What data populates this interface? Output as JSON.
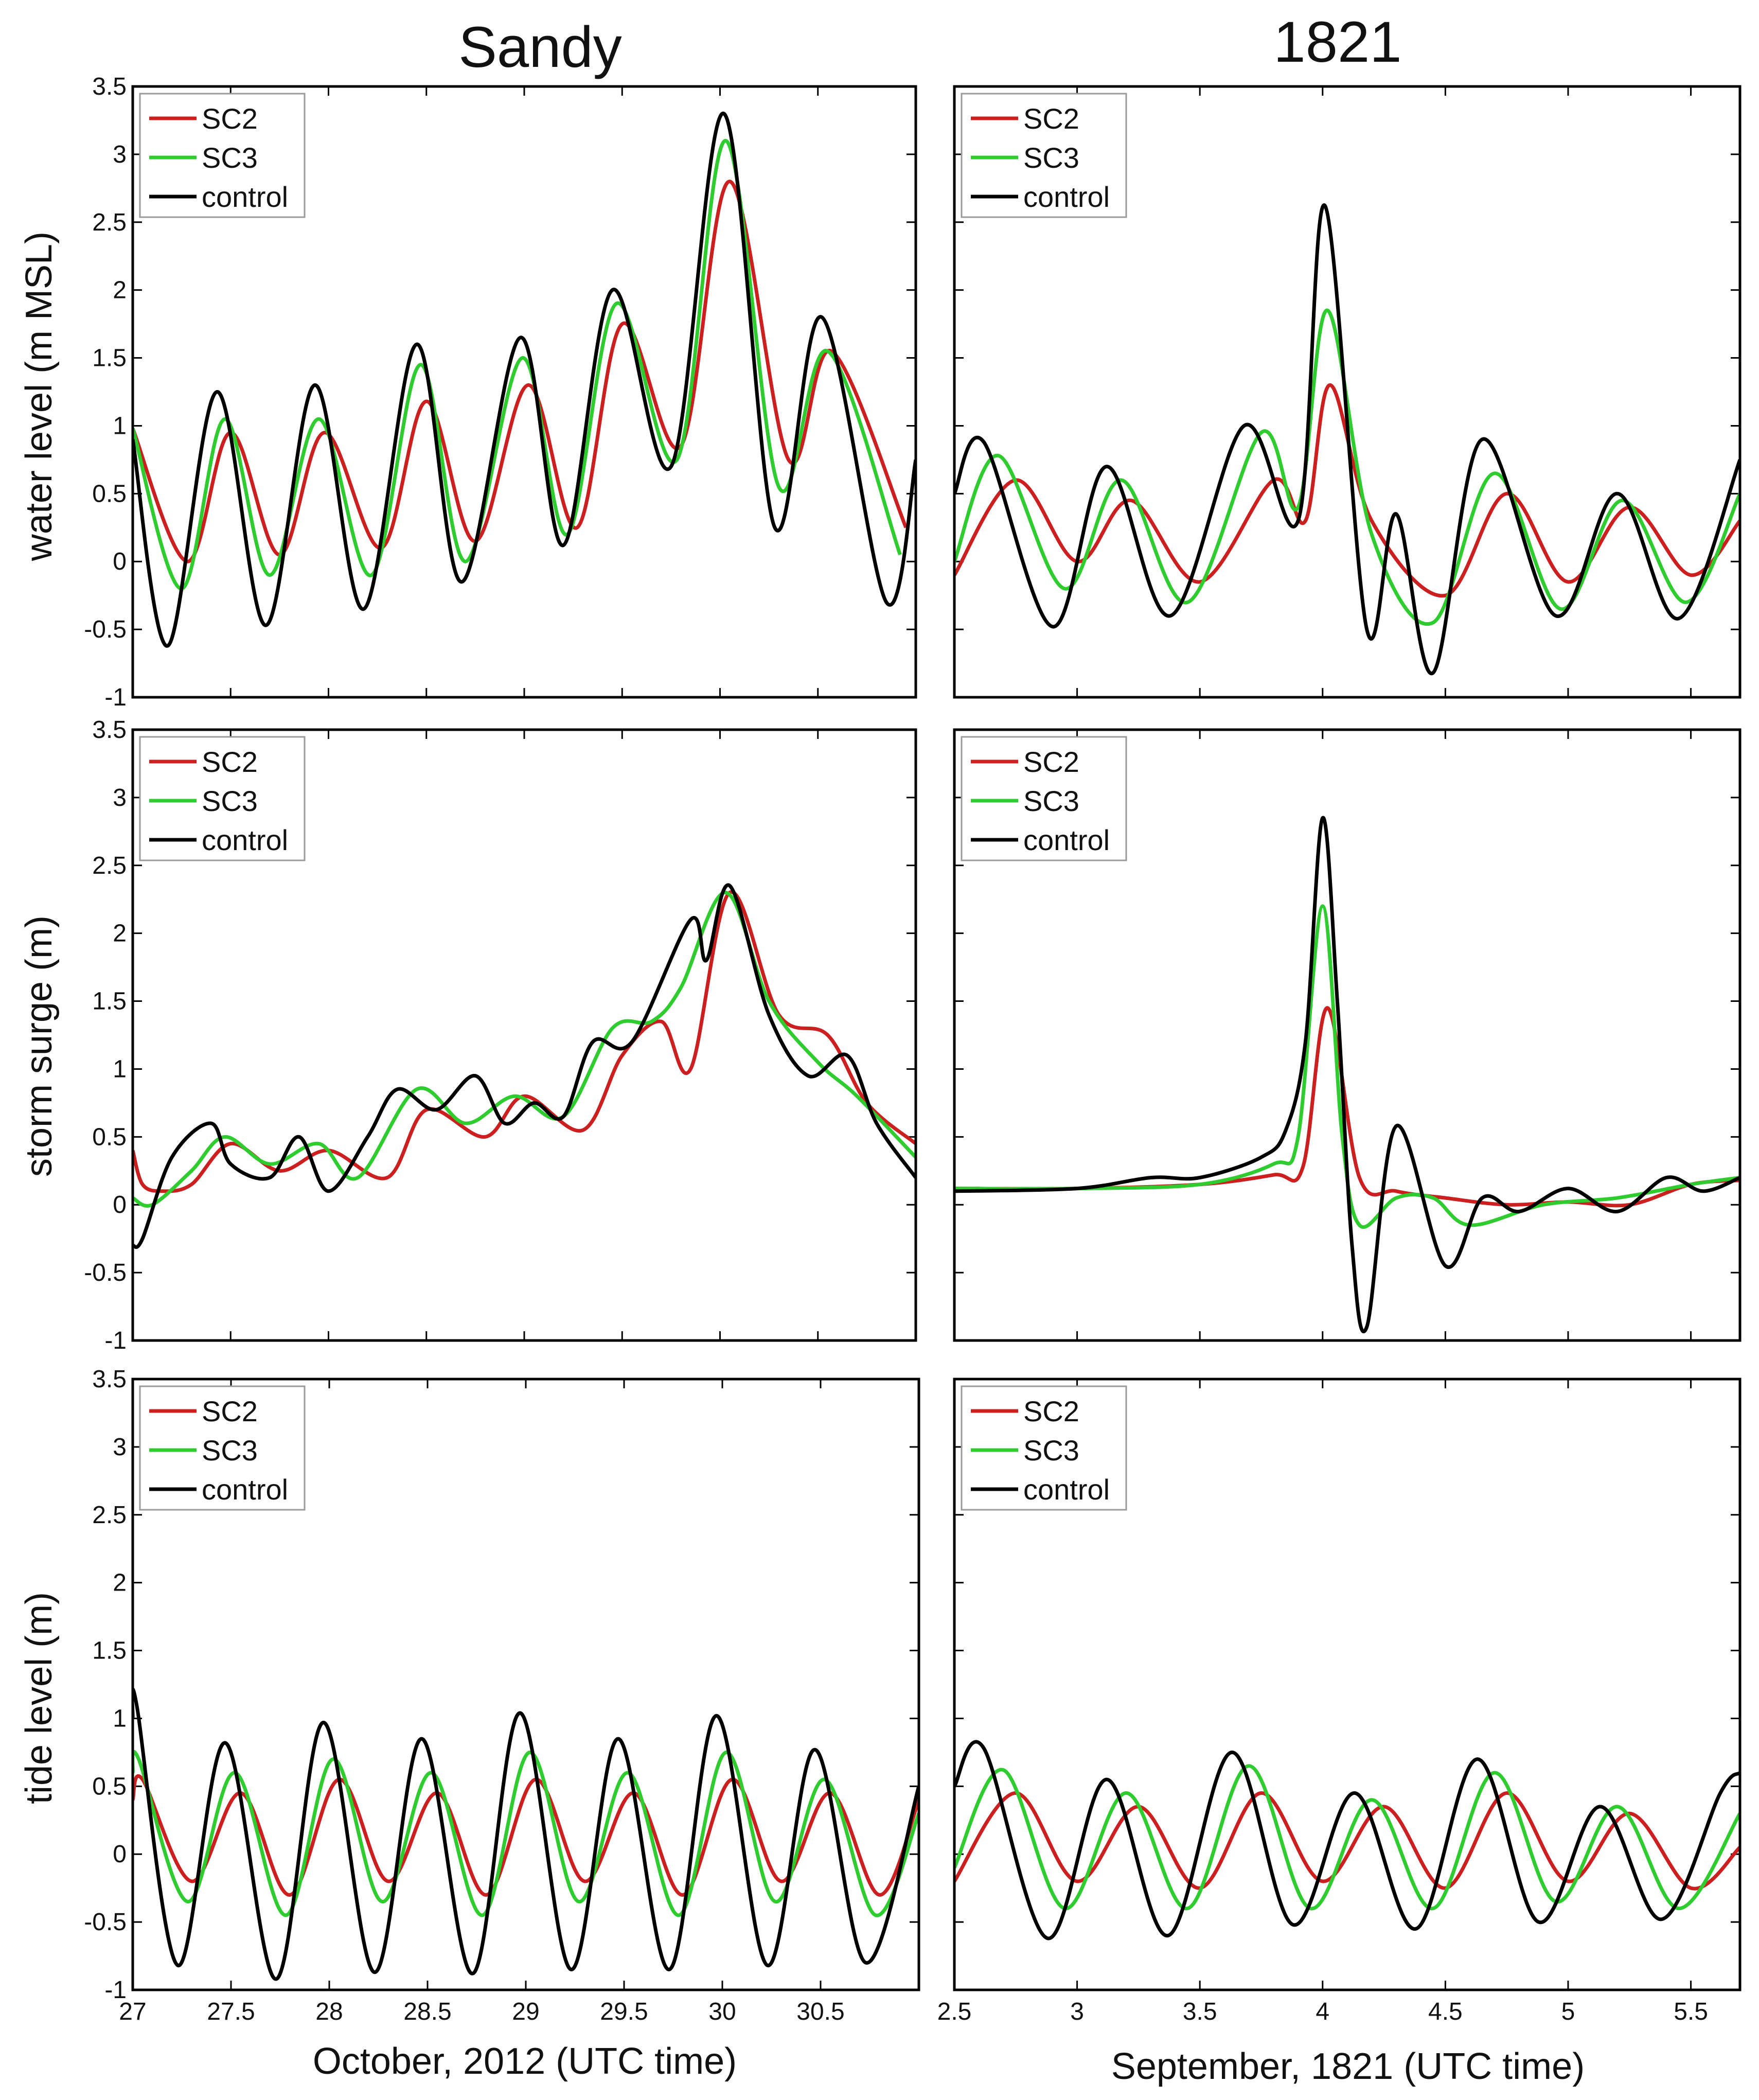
{
  "column_titles": [
    "Sandy",
    "1821"
  ],
  "y_axis_labels": [
    "water level (m MSL)",
    "storm surge (m)",
    "tide level (m)"
  ],
  "x_axis_labels": [
    "October, 2012 (UTC time)",
    "September, 1821 (UTC time)"
  ],
  "legend": [
    "SC2",
    "SC3",
    "control"
  ],
  "colors": {
    "SC2": "#cc1f1f",
    "SC3": "#2ecc2e",
    "control": "#000000"
  },
  "y_tick_labels": [
    "-1",
    "-0.5",
    "0",
    "0.5",
    "1",
    "1.5",
    "2",
    "2.5",
    "3",
    "3.5"
  ],
  "x_tick_labels": {
    "sandy": [
      "27",
      "27.5",
      "28",
      "28.5",
      "29",
      "29.5",
      "30",
      "30.5"
    ],
    "1821": [
      "2.5",
      "3",
      "3.5",
      "4",
      "4.5",
      "5",
      "5.5"
    ]
  },
  "chart_data": [
    {
      "panel": "Sandy water level",
      "type": "line",
      "xlim": [
        27,
        31
      ],
      "ylim": [
        -1,
        3.5
      ],
      "ylabel": "water level (m MSL)",
      "legend_position": "top-left",
      "series": [
        {
          "name": "SC2",
          "x": [
            27.0,
            27.28,
            27.5,
            27.75,
            27.98,
            28.27,
            28.5,
            28.75,
            29.02,
            29.27,
            29.5,
            29.8,
            30.05,
            30.35,
            30.57,
            30.95
          ],
          "y": [
            0.98,
            0.0,
            0.95,
            0.05,
            0.95,
            0.1,
            1.18,
            0.15,
            1.3,
            0.25,
            1.75,
            0.85,
            2.8,
            0.75,
            1.55,
            0.25
          ]
        },
        {
          "name": "SC3",
          "x": [
            27.0,
            27.25,
            27.47,
            27.7,
            27.95,
            28.22,
            28.47,
            28.7,
            28.99,
            29.22,
            29.47,
            29.78,
            30.03,
            30.3,
            30.55,
            30.92
          ],
          "y": [
            0.98,
            -0.2,
            1.05,
            -0.1,
            1.05,
            -0.1,
            1.45,
            0.0,
            1.5,
            0.2,
            1.9,
            0.75,
            3.1,
            0.55,
            1.55,
            0.05
          ]
        },
        {
          "name": "control",
          "x": [
            27.0,
            27.18,
            27.43,
            27.68,
            27.93,
            28.18,
            28.45,
            28.68,
            28.98,
            29.2,
            29.45,
            29.75,
            30.02,
            30.28,
            30.52,
            30.85,
            31.0
          ],
          "y": [
            0.9,
            -0.62,
            1.25,
            -0.47,
            1.3,
            -0.35,
            1.6,
            -0.15,
            1.65,
            0.12,
            2.0,
            0.7,
            3.3,
            0.25,
            1.8,
            -0.3,
            0.75
          ]
        }
      ]
    },
    {
      "panel": "1821 water level",
      "type": "line",
      "xlim": [
        2.5,
        5.7
      ],
      "ylim": [
        -1,
        3.5
      ],
      "legend_position": "top-left",
      "series": [
        {
          "name": "SC2",
          "x": [
            2.5,
            2.75,
            3.0,
            3.22,
            3.5,
            3.8,
            3.93,
            4.03,
            4.2,
            4.5,
            4.75,
            5.0,
            5.25,
            5.5,
            5.7
          ],
          "y": [
            -0.1,
            0.6,
            0.0,
            0.45,
            -0.15,
            0.6,
            0.3,
            1.3,
            0.3,
            -0.25,
            0.5,
            -0.15,
            0.4,
            -0.1,
            0.3
          ]
        },
        {
          "name": "SC3",
          "x": [
            2.5,
            2.68,
            2.95,
            3.18,
            3.45,
            3.75,
            3.9,
            4.02,
            4.2,
            4.45,
            4.7,
            4.97,
            5.22,
            5.48,
            5.7
          ],
          "y": [
            0.0,
            0.78,
            -0.2,
            0.6,
            -0.3,
            0.95,
            0.4,
            1.85,
            0.2,
            -0.45,
            0.65,
            -0.35,
            0.45,
            -0.3,
            0.5
          ]
        },
        {
          "name": "control",
          "x": [
            2.5,
            2.62,
            2.9,
            3.12,
            3.38,
            3.68,
            3.9,
            4.01,
            4.18,
            4.3,
            4.45,
            4.65,
            4.95,
            5.2,
            5.45,
            5.7
          ],
          "y": [
            0.5,
            0.88,
            -0.48,
            0.7,
            -0.4,
            1.0,
            0.3,
            2.62,
            -0.5,
            0.35,
            -0.82,
            0.9,
            -0.4,
            0.5,
            -0.42,
            0.75
          ]
        }
      ]
    },
    {
      "panel": "Sandy storm surge",
      "type": "line",
      "xlim": [
        27,
        31
      ],
      "ylim": [
        -1,
        3.5
      ],
      "ylabel": "storm surge (m)",
      "legend_position": "top-left",
      "series": [
        {
          "name": "SC2",
          "x": [
            27.0,
            27.05,
            27.15,
            27.3,
            27.5,
            27.75,
            28.0,
            28.3,
            28.5,
            28.8,
            29.0,
            29.3,
            29.5,
            29.7,
            29.85,
            30.05,
            30.3,
            30.55,
            30.75,
            31.0
          ],
          "y": [
            0.4,
            0.15,
            0.1,
            0.15,
            0.45,
            0.25,
            0.4,
            0.2,
            0.7,
            0.5,
            0.8,
            0.55,
            1.1,
            1.35,
            1.0,
            2.3,
            1.4,
            1.25,
            0.75,
            0.45
          ]
        },
        {
          "name": "SC3",
          "x": [
            27.0,
            27.1,
            27.3,
            27.47,
            27.7,
            27.95,
            28.15,
            28.45,
            28.7,
            28.95,
            29.2,
            29.45,
            29.65,
            29.8,
            30.03,
            30.25,
            30.5,
            30.7,
            31.0
          ],
          "y": [
            0.05,
            0.0,
            0.25,
            0.5,
            0.3,
            0.45,
            0.2,
            0.85,
            0.6,
            0.8,
            0.65,
            1.3,
            1.35,
            1.6,
            2.3,
            1.5,
            1.05,
            0.8,
            0.35
          ]
        },
        {
          "name": "control",
          "x": [
            27.0,
            27.05,
            27.2,
            27.4,
            27.5,
            27.7,
            27.85,
            28.0,
            28.2,
            28.35,
            28.55,
            28.75,
            28.9,
            29.05,
            29.2,
            29.35,
            29.55,
            29.85,
            29.93,
            30.05,
            30.25,
            30.45,
            30.65,
            30.8,
            31.0
          ],
          "y": [
            -0.3,
            -0.25,
            0.35,
            0.6,
            0.3,
            0.2,
            0.5,
            0.1,
            0.5,
            0.85,
            0.7,
            0.95,
            0.6,
            0.75,
            0.65,
            1.2,
            1.2,
            2.1,
            1.8,
            2.35,
            1.4,
            0.95,
            1.1,
            0.6,
            0.2
          ]
        }
      ]
    },
    {
      "panel": "1821 storm surge",
      "type": "line",
      "xlim": [
        2.5,
        5.7
      ],
      "ylim": [
        -1,
        3.5
      ],
      "legend_position": "top-left",
      "series": [
        {
          "name": "SC2",
          "x": [
            2.5,
            3.0,
            3.5,
            3.8,
            3.92,
            4.02,
            4.15,
            4.3,
            4.5,
            4.75,
            5.0,
            5.25,
            5.5,
            5.7
          ],
          "y": [
            0.12,
            0.12,
            0.15,
            0.22,
            0.28,
            1.45,
            0.2,
            0.1,
            0.05,
            0.0,
            0.02,
            0.0,
            0.15,
            0.18
          ]
        },
        {
          "name": "SC3",
          "x": [
            2.5,
            3.0,
            3.5,
            3.8,
            3.9,
            4.0,
            4.08,
            4.15,
            4.3,
            4.45,
            4.6,
            4.9,
            5.2,
            5.5,
            5.7
          ],
          "y": [
            0.12,
            0.12,
            0.15,
            0.3,
            0.5,
            2.2,
            0.5,
            -0.15,
            0.05,
            0.05,
            -0.15,
            0.0,
            0.05,
            0.15,
            0.2
          ]
        },
        {
          "name": "control",
          "x": [
            2.5,
            3.0,
            3.3,
            3.5,
            3.75,
            3.85,
            3.93,
            4.0,
            4.06,
            4.12,
            4.18,
            4.3,
            4.5,
            4.65,
            4.8,
            5.0,
            5.2,
            5.4,
            5.55,
            5.7
          ],
          "y": [
            0.1,
            0.12,
            0.2,
            0.2,
            0.35,
            0.55,
            1.2,
            2.85,
            1.5,
            -0.3,
            -0.9,
            0.58,
            -0.45,
            0.05,
            -0.05,
            0.12,
            -0.05,
            0.2,
            0.1,
            0.2
          ]
        }
      ]
    },
    {
      "panel": "Sandy tide level",
      "type": "line",
      "xlim": [
        27,
        31
      ],
      "ylim": [
        -1,
        3.5
      ],
      "ylabel": "tide level (m)",
      "xlabel": "October, 2012 (UTC time)",
      "legend_position": "top-left",
      "series": [
        {
          "name": "SC2",
          "x": [
            27.0,
            27.05,
            27.3,
            27.55,
            27.8,
            28.05,
            28.3,
            28.55,
            28.8,
            29.05,
            29.3,
            29.55,
            29.8,
            30.05,
            30.3,
            30.55,
            30.8,
            31.0
          ],
          "y": [
            0.4,
            0.55,
            -0.2,
            0.45,
            -0.3,
            0.55,
            -0.2,
            0.45,
            -0.3,
            0.55,
            -0.2,
            0.45,
            -0.3,
            0.55,
            -0.2,
            0.45,
            -0.3,
            0.4
          ]
        },
        {
          "name": "SC3",
          "x": [
            27.0,
            27.03,
            27.28,
            27.52,
            27.78,
            28.02,
            28.27,
            28.52,
            28.78,
            29.02,
            29.27,
            29.52,
            29.78,
            30.02,
            30.27,
            30.52,
            30.78,
            31.0
          ],
          "y": [
            0.6,
            0.7,
            -0.35,
            0.6,
            -0.45,
            0.7,
            -0.35,
            0.6,
            -0.45,
            0.75,
            -0.35,
            0.6,
            -0.45,
            0.75,
            -0.35,
            0.55,
            -0.45,
            0.3
          ]
        },
        {
          "name": "control",
          "x": [
            27.0,
            27.02,
            27.23,
            27.47,
            27.73,
            27.97,
            28.23,
            28.47,
            28.73,
            28.97,
            29.23,
            29.47,
            29.73,
            29.97,
            30.23,
            30.47,
            30.73,
            31.0
          ],
          "y": [
            1.0,
            1.1,
            -0.82,
            0.82,
            -0.92,
            0.97,
            -0.87,
            0.85,
            -0.88,
            1.04,
            -0.85,
            0.85,
            -0.85,
            1.02,
            -0.82,
            0.77,
            -0.8,
            0.5
          ]
        }
      ]
    },
    {
      "panel": "1821 tide level",
      "type": "line",
      "xlim": [
        2.5,
        5.7
      ],
      "ylim": [
        -1,
        3.5
      ],
      "xlabel": "September, 1821 (UTC time)",
      "legend_position": "top-left",
      "series": [
        {
          "name": "SC2",
          "x": [
            2.5,
            2.75,
            3.0,
            3.25,
            3.5,
            3.75,
            4.0,
            4.25,
            4.5,
            4.75,
            5.0,
            5.25,
            5.5,
            5.7
          ],
          "y": [
            -0.2,
            0.45,
            -0.2,
            0.35,
            -0.25,
            0.45,
            -0.2,
            0.35,
            -0.25,
            0.45,
            -0.2,
            0.3,
            -0.25,
            0.05
          ]
        },
        {
          "name": "SC3",
          "x": [
            2.5,
            2.7,
            2.95,
            3.2,
            3.45,
            3.7,
            3.95,
            4.2,
            4.45,
            4.7,
            4.95,
            5.2,
            5.45,
            5.7
          ],
          "y": [
            -0.1,
            0.62,
            -0.4,
            0.45,
            -0.4,
            0.65,
            -0.4,
            0.4,
            -0.4,
            0.6,
            -0.35,
            0.35,
            -0.4,
            0.3
          ]
        },
        {
          "name": "control",
          "x": [
            2.5,
            2.62,
            2.88,
            3.12,
            3.37,
            3.63,
            3.88,
            4.13,
            4.38,
            4.63,
            4.88,
            5.13,
            5.38,
            5.62,
            5.7
          ],
          "y": [
            0.5,
            0.78,
            -0.62,
            0.55,
            -0.6,
            0.75,
            -0.52,
            0.45,
            -0.55,
            0.7,
            -0.5,
            0.35,
            -0.48,
            0.45,
            0.6
          ]
        }
      ]
    }
  ]
}
